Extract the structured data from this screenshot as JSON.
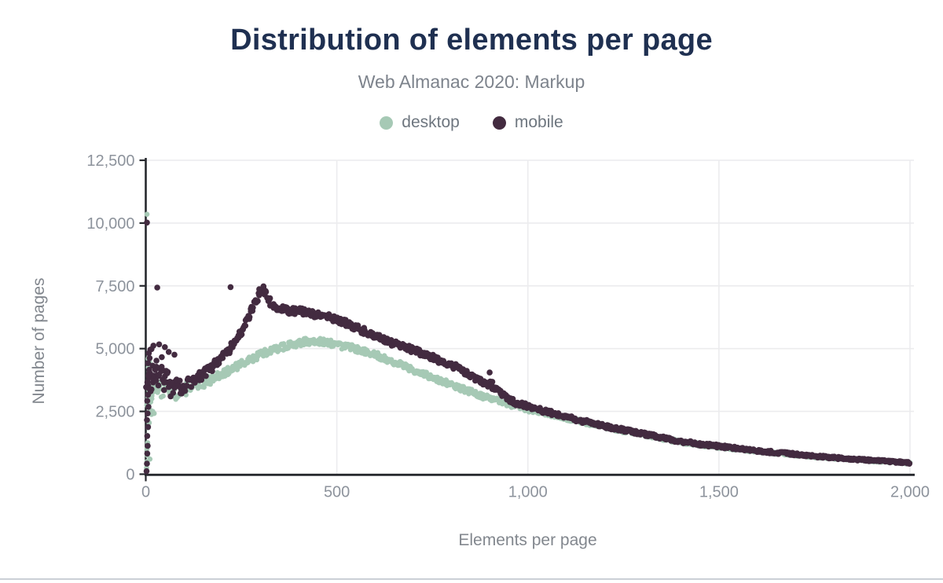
{
  "header": {
    "title": "Distribution of elements per page",
    "subtitle": "Web Almanac 2020: Markup"
  },
  "theme": {
    "title_color": "#1f3051",
    "subtitle_color": "#7d838c",
    "legend_text_color": "#6e767f",
    "tick_label_color": "#8d939c",
    "axis_title_color": "#82878e",
    "axis_line_color": "#27292e",
    "grid_line_color": "#ececee",
    "background": "#ffffff",
    "divider_color": "#cbd0d6"
  },
  "chart_data": {
    "type": "scatter",
    "title": "Distribution of elements per page",
    "subtitle": "Web Almanac 2020: Markup",
    "xlabel": "Elements per page",
    "ylabel": "Number of pages",
    "xlim": [
      0,
      2000
    ],
    "ylim": [
      0,
      12500
    ],
    "xticks": {
      "values": [
        0,
        500,
        1000,
        1500,
        2000
      ],
      "labels": [
        "0",
        "500",
        "1,000",
        "1,500",
        "2,000"
      ]
    },
    "yticks": {
      "values": [
        0,
        2500,
        5000,
        7500,
        10000,
        12500
      ],
      "labels": [
        "0",
        "2,500",
        "5,000",
        "7,500",
        "10,000",
        "12,500"
      ]
    },
    "grid": true,
    "legend_position": "top",
    "point_step": 2,
    "noise_profile": [
      [
        0,
        420
      ],
      [
        60,
        380
      ],
      [
        120,
        230
      ],
      [
        200,
        150
      ],
      [
        300,
        140
      ],
      [
        600,
        130
      ],
      [
        900,
        110
      ],
      [
        1100,
        85
      ],
      [
        1400,
        65
      ],
      [
        1700,
        50
      ],
      [
        2000,
        38
      ]
    ],
    "series": [
      {
        "name": "desktop",
        "color": "#a6c9b5",
        "dot_radius": 3.3,
        "trend": [
          [
            10,
            3100
          ],
          [
            25,
            3350
          ],
          [
            40,
            3450
          ],
          [
            55,
            3400
          ],
          [
            70,
            3300
          ],
          [
            85,
            3300
          ],
          [
            100,
            3400
          ],
          [
            120,
            3500
          ],
          [
            140,
            3600
          ],
          [
            160,
            3700
          ],
          [
            180,
            3850
          ],
          [
            200,
            4000
          ],
          [
            220,
            4150
          ],
          [
            240,
            4300
          ],
          [
            260,
            4450
          ],
          [
            275,
            4560
          ],
          [
            290,
            4680
          ],
          [
            300,
            4760
          ],
          [
            315,
            4860
          ],
          [
            330,
            4940
          ],
          [
            345,
            5010
          ],
          [
            360,
            5070
          ],
          [
            380,
            5150
          ],
          [
            400,
            5220
          ],
          [
            420,
            5280
          ],
          [
            440,
            5300
          ],
          [
            460,
            5280
          ],
          [
            480,
            5230
          ],
          [
            500,
            5160
          ],
          [
            525,
            5080
          ],
          [
            550,
            5000
          ],
          [
            575,
            4900
          ],
          [
            600,
            4760
          ],
          [
            625,
            4620
          ],
          [
            650,
            4470
          ],
          [
            675,
            4320
          ],
          [
            700,
            4160
          ],
          [
            725,
            4010
          ],
          [
            750,
            3860
          ],
          [
            775,
            3710
          ],
          [
            800,
            3570
          ],
          [
            825,
            3420
          ],
          [
            850,
            3280
          ],
          [
            875,
            3140
          ],
          [
            900,
            3010
          ],
          [
            925,
            2900
          ],
          [
            950,
            2790
          ],
          [
            975,
            2690
          ],
          [
            1000,
            2580
          ],
          [
            1050,
            2400
          ],
          [
            1100,
            2230
          ],
          [
            1150,
            2050
          ],
          [
            1200,
            1880
          ],
          [
            1250,
            1720
          ],
          [
            1300,
            1580
          ],
          [
            1350,
            1420
          ],
          [
            1400,
            1280
          ],
          [
            1450,
            1170
          ],
          [
            1500,
            1080
          ],
          [
            1550,
            990
          ],
          [
            1600,
            915
          ],
          [
            1650,
            840
          ],
          [
            1700,
            770
          ],
          [
            1750,
            700
          ],
          [
            1800,
            640
          ],
          [
            1850,
            585
          ],
          [
            1900,
            535
          ],
          [
            1950,
            490
          ],
          [
            2000,
            440
          ]
        ],
        "scatter": [
          [
            3,
            10350
          ],
          [
            2,
            250
          ],
          [
            3,
            500
          ],
          [
            4,
            750
          ],
          [
            3,
            1000
          ],
          [
            5,
            1250
          ],
          [
            4,
            1550
          ],
          [
            6,
            1850
          ],
          [
            5,
            2150
          ],
          [
            7,
            2450
          ],
          [
            4,
            2750
          ],
          [
            6,
            3050
          ],
          [
            8,
            3350
          ],
          [
            5,
            3650
          ],
          [
            9,
            3950
          ],
          [
            7,
            4250
          ],
          [
            10,
            4450
          ],
          [
            12,
            2550
          ],
          [
            15,
            2380
          ],
          [
            18,
            2500
          ],
          [
            22,
            2420
          ],
          [
            11,
            600
          ],
          [
            13,
            2880
          ],
          [
            16,
            3120
          ],
          [
            9,
            2050
          ],
          [
            6,
            4600
          ]
        ]
      },
      {
        "name": "mobile",
        "color": "#432b40",
        "dot_radius": 3.8,
        "trend": [
          [
            10,
            3600
          ],
          [
            25,
            3900
          ],
          [
            40,
            3950
          ],
          [
            55,
            3800
          ],
          [
            70,
            3550
          ],
          [
            85,
            3450
          ],
          [
            100,
            3500
          ],
          [
            120,
            3650
          ],
          [
            140,
            3850
          ],
          [
            160,
            4100
          ],
          [
            180,
            4350
          ],
          [
            200,
            4650
          ],
          [
            220,
            5000
          ],
          [
            240,
            5450
          ],
          [
            260,
            5950
          ],
          [
            275,
            6450
          ],
          [
            290,
            6950
          ],
          [
            300,
            7300
          ],
          [
            308,
            7350
          ],
          [
            315,
            7150
          ],
          [
            325,
            6850
          ],
          [
            340,
            6650
          ],
          [
            360,
            6550
          ],
          [
            380,
            6500
          ],
          [
            400,
            6500
          ],
          [
            420,
            6470
          ],
          [
            440,
            6350
          ],
          [
            460,
            6300
          ],
          [
            480,
            6250
          ],
          [
            500,
            6150
          ],
          [
            525,
            6000
          ],
          [
            550,
            5850
          ],
          [
            575,
            5680
          ],
          [
            600,
            5500
          ],
          [
            625,
            5350
          ],
          [
            650,
            5200
          ],
          [
            675,
            5080
          ],
          [
            700,
            4950
          ],
          [
            725,
            4800
          ],
          [
            750,
            4650
          ],
          [
            775,
            4500
          ],
          [
            800,
            4350
          ],
          [
            825,
            4150
          ],
          [
            850,
            3950
          ],
          [
            875,
            3700
          ],
          [
            890,
            3550
          ],
          [
            900,
            3600
          ],
          [
            915,
            3400
          ],
          [
            930,
            3250
          ],
          [
            950,
            2950
          ],
          [
            975,
            2820
          ],
          [
            1000,
            2700
          ],
          [
            1050,
            2480
          ],
          [
            1100,
            2280
          ],
          [
            1150,
            2090
          ],
          [
            1200,
            1920
          ],
          [
            1250,
            1760
          ],
          [
            1300,
            1620
          ],
          [
            1350,
            1450
          ],
          [
            1400,
            1310
          ],
          [
            1450,
            1200
          ],
          [
            1500,
            1110
          ],
          [
            1550,
            1020
          ],
          [
            1600,
            940
          ],
          [
            1650,
            860
          ],
          [
            1700,
            790
          ],
          [
            1750,
            720
          ],
          [
            1800,
            660
          ],
          [
            1850,
            600
          ],
          [
            1900,
            550
          ],
          [
            1950,
            500
          ],
          [
            2000,
            450
          ]
        ],
        "scatter": [
          [
            3,
            10020
          ],
          [
            30,
            7430
          ],
          [
            222,
            7450
          ],
          [
            308,
            7480
          ],
          [
            900,
            4050
          ],
          [
            907,
            3680
          ],
          [
            2,
            120
          ],
          [
            3,
            420
          ],
          [
            4,
            820
          ],
          [
            5,
            1130
          ],
          [
            4,
            1520
          ],
          [
            6,
            1880
          ],
          [
            3,
            2160
          ],
          [
            5,
            2420
          ],
          [
            7,
            2680
          ],
          [
            4,
            2920
          ],
          [
            6,
            3160
          ],
          [
            8,
            3420
          ],
          [
            5,
            3680
          ],
          [
            7,
            3920
          ],
          [
            9,
            4160
          ],
          [
            6,
            4420
          ],
          [
            10,
            4620
          ],
          [
            8,
            4820
          ],
          [
            12,
            4960
          ],
          [
            20,
            5120
          ],
          [
            35,
            5170
          ],
          [
            50,
            5060
          ],
          [
            28,
            4520
          ],
          [
            42,
            4660
          ],
          [
            18,
            4320
          ],
          [
            60,
            4870
          ],
          [
            75,
            4760
          ],
          [
            15,
            4980
          ],
          [
            48,
            3350
          ],
          [
            65,
            3100
          ]
        ]
      }
    ]
  }
}
